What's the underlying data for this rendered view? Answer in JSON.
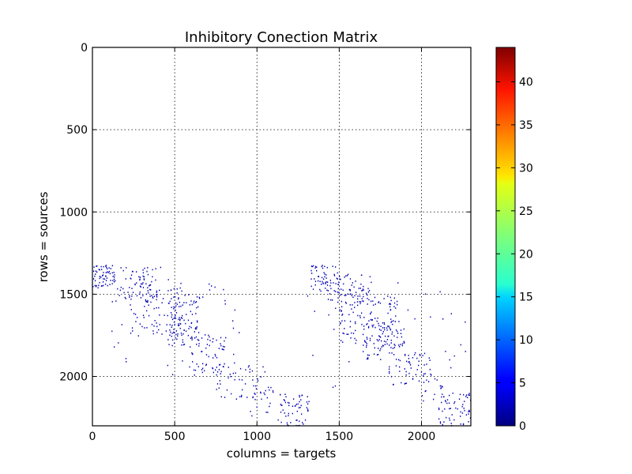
{
  "chart_data": {
    "type": "heatmap",
    "title": "Inhibitory Conection Matrix",
    "xlabel": "columns = targets",
    "ylabel": "rows = sources",
    "xlim": [
      0,
      2300
    ],
    "ylim": [
      2300,
      0
    ],
    "x_ticks": [
      0,
      500,
      1000,
      1500,
      2000
    ],
    "y_ticks": [
      0,
      500,
      1000,
      1500,
      2000
    ],
    "grid": true,
    "colormap": "jet",
    "colorbar": {
      "min": 0,
      "max": 44,
      "ticks": [
        0,
        5,
        10,
        15,
        20,
        25,
        30,
        35,
        40
      ]
    },
    "point_value": 4,
    "point_color": "#0000b3",
    "point_clusters": [
      {
        "x": [
          0,
          130
        ],
        "y": [
          1320,
          1450
        ],
        "count": 60
      },
      {
        "x": [
          120,
          420
        ],
        "y": [
          1330,
          1520
        ],
        "count": 60
      },
      {
        "x": [
          220,
          560
        ],
        "y": [
          1420,
          1750
        ],
        "count": 90
      },
      {
        "x": [
          450,
          650
        ],
        "y": [
          1500,
          1820
        ],
        "count": 100
      },
      {
        "x": [
          600,
          800
        ],
        "y": [
          1700,
          2000
        ],
        "count": 60
      },
      {
        "x": [
          750,
          1050
        ],
        "y": [
          1900,
          2150
        ],
        "count": 50
      },
      {
        "x": [
          950,
          1100
        ],
        "y": [
          2050,
          2250
        ],
        "count": 20
      },
      {
        "x": [
          1120,
          1320
        ],
        "y": [
          2100,
          2300
        ],
        "count": 60
      },
      {
        "x": [
          1320,
          1500
        ],
        "y": [
          1320,
          1480
        ],
        "count": 60
      },
      {
        "x": [
          1430,
          1700
        ],
        "y": [
          1380,
          1550
        ],
        "count": 60
      },
      {
        "x": [
          1500,
          1850
        ],
        "y": [
          1500,
          1800
        ],
        "count": 110
      },
      {
        "x": [
          1630,
          1900
        ],
        "y": [
          1650,
          1900
        ],
        "count": 80
      },
      {
        "x": [
          1800,
          2050
        ],
        "y": [
          1850,
          2050
        ],
        "count": 50
      },
      {
        "x": [
          2000,
          2150
        ],
        "y": [
          1950,
          2150
        ],
        "count": 20
      },
      {
        "x": [
          2100,
          2300
        ],
        "y": [
          2100,
          2300
        ],
        "count": 60
      },
      {
        "x": [
          0,
          900
        ],
        "y": [
          1350,
          2000
        ],
        "count": 45
      },
      {
        "x": [
          1300,
          2300
        ],
        "y": [
          1350,
          2100
        ],
        "count": 45
      }
    ]
  }
}
